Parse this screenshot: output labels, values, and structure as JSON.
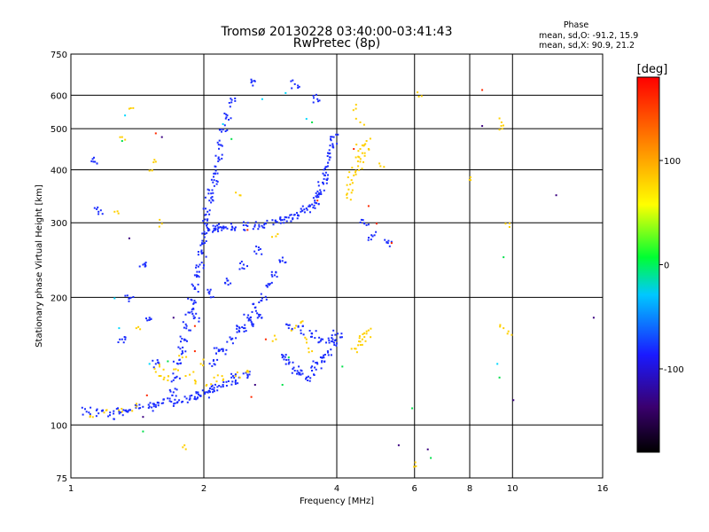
{
  "chart_data": {
    "type": "scatter",
    "title": "Tromsø 20130228 03:40:00-03:41:43",
    "subtitle": "RwPretec (8p)",
    "xlabel": "Frequency [MHz]",
    "ylabel": "Stationary phase Virtual Height [km]",
    "x_scale": "log",
    "y_scale": "log",
    "xlim": [
      1,
      16
    ],
    "ylim": [
      75,
      750
    ],
    "x_ticks": [
      1,
      2,
      4,
      6,
      8,
      10,
      16
    ],
    "x_tick_labels": [
      "1",
      "2",
      "4",
      "6",
      "8",
      "10",
      "16"
    ],
    "y_ticks": [
      75,
      100,
      200,
      300,
      400,
      500,
      600,
      750
    ],
    "y_tick_labels": [
      "75",
      "100",
      "200",
      "300",
      "400",
      "500",
      "600",
      "750"
    ],
    "grid": true,
    "phase_stats": {
      "heading": "Phase",
      "line_o": "mean, sd,O:  -91.2, 15.9",
      "line_x": "mean, sd,X:  90.9, 21.2"
    },
    "colorbar": {
      "label": "[deg]",
      "range": [
        -180,
        180
      ],
      "ticks": [
        100,
        0,
        -100
      ],
      "tick_labels": [
        "100",
        "0",
        "-100"
      ],
      "colors": [
        "#000000",
        "#3a006e",
        "#1a1aff",
        "#00c8ff",
        "#00ff32",
        "#ffff00",
        "#ff9600",
        "#ff0000"
      ]
    },
    "series": [
      {
        "mode": "O",
        "phase_mean": -91.2,
        "color": "#1a2cff",
        "points": [
          [
            1.08,
            108
          ],
          [
            1.15,
            107
          ],
          [
            1.22,
            106
          ],
          [
            1.28,
            108
          ],
          [
            1.35,
            109
          ],
          [
            1.42,
            110
          ],
          [
            1.5,
            111
          ],
          [
            1.55,
            112
          ],
          [
            1.6,
            113
          ],
          [
            1.68,
            114
          ],
          [
            1.75,
            115
          ],
          [
            1.82,
            116
          ],
          [
            1.9,
            117
          ],
          [
            1.95,
            118
          ],
          [
            2.0,
            119
          ],
          [
            2.05,
            121
          ],
          [
            2.1,
            123
          ],
          [
            2.2,
            125
          ],
          [
            2.35,
            128
          ],
          [
            2.5,
            132
          ],
          [
            1.7,
            120
          ],
          [
            1.72,
            130
          ],
          [
            1.74,
            140
          ],
          [
            1.78,
            150
          ],
          [
            1.8,
            160
          ],
          [
            1.82,
            172
          ],
          [
            1.85,
            185
          ],
          [
            1.87,
            198
          ],
          [
            1.9,
            212
          ],
          [
            1.93,
            226
          ],
          [
            1.95,
            240
          ],
          [
            1.97,
            255
          ],
          [
            2.0,
            270
          ],
          [
            2.02,
            285
          ],
          [
            2.05,
            290
          ],
          [
            2.1,
            292
          ],
          [
            2.15,
            293
          ],
          [
            2.25,
            292
          ],
          [
            2.35,
            294
          ],
          [
            2.5,
            296
          ],
          [
            2.6,
            298
          ],
          [
            2.75,
            300
          ],
          [
            2.9,
            303
          ],
          [
            3.0,
            306
          ],
          [
            3.1,
            310
          ],
          [
            3.2,
            315
          ],
          [
            3.3,
            320
          ],
          [
            3.4,
            326
          ],
          [
            3.5,
            333
          ],
          [
            3.55,
            340
          ],
          [
            3.6,
            350
          ],
          [
            3.65,
            360
          ],
          [
            3.7,
            375
          ],
          [
            3.75,
            390
          ],
          [
            3.8,
            410
          ],
          [
            3.85,
            430
          ],
          [
            3.9,
            455
          ],
          [
            3.92,
            480
          ],
          [
            2.0,
            300
          ],
          [
            2.03,
            320
          ],
          [
            2.05,
            340
          ],
          [
            2.08,
            360
          ],
          [
            2.1,
            380
          ],
          [
            2.12,
            400
          ],
          [
            2.15,
            430
          ],
          [
            2.17,
            460
          ],
          [
            2.2,
            500
          ],
          [
            2.25,
            540
          ],
          [
            2.3,
            580
          ],
          [
            2.1,
            140
          ],
          [
            2.2,
            150
          ],
          [
            2.3,
            160
          ],
          [
            2.4,
            170
          ],
          [
            2.5,
            180
          ],
          [
            2.6,
            190
          ],
          [
            2.7,
            200
          ],
          [
            2.8,
            215
          ],
          [
            2.9,
            230
          ],
          [
            3.0,
            245
          ],
          [
            3.0,
            145
          ],
          [
            3.1,
            140
          ],
          [
            3.2,
            135
          ],
          [
            3.3,
            132
          ],
          [
            3.4,
            130
          ],
          [
            3.5,
            135
          ],
          [
            3.6,
            140
          ],
          [
            3.7,
            145
          ],
          [
            3.8,
            150
          ],
          [
            3.9,
            160
          ],
          [
            4.0,
            165
          ],
          [
            3.1,
            170
          ],
          [
            3.3,
            168
          ],
          [
            3.5,
            165
          ],
          [
            3.7,
            160
          ],
          [
            3.9,
            158
          ],
          [
            2.45,
            170
          ],
          [
            2.55,
            176
          ],
          [
            2.65,
            183
          ],
          [
            1.3,
            160
          ],
          [
            1.9,
            180
          ],
          [
            2.05,
            205
          ],
          [
            2.25,
            220
          ],
          [
            2.45,
            240
          ],
          [
            2.65,
            260
          ],
          [
            1.15,
            320
          ],
          [
            1.12,
            420
          ],
          [
            1.35,
            200
          ],
          [
            1.45,
            240
          ],
          [
            2.6,
            650
          ],
          [
            3.2,
            640
          ],
          [
            3.6,
            590
          ],
          [
            4.6,
            300
          ],
          [
            4.8,
            280
          ],
          [
            5.2,
            270
          ],
          [
            1.5,
            180
          ],
          [
            1.55,
            140
          ],
          [
            2.15,
            150
          ],
          [
            2.3,
            130
          ]
        ]
      },
      {
        "mode": "X",
        "phase_mean": 90.9,
        "color": "#ffd000",
        "points": [
          [
            1.55,
            134
          ],
          [
            1.58,
            138
          ],
          [
            1.62,
            130
          ],
          [
            1.65,
            128
          ],
          [
            1.72,
            136
          ],
          [
            1.78,
            145
          ],
          [
            1.85,
            132
          ],
          [
            1.9,
            128
          ],
          [
            1.96,
            140
          ],
          [
            2.02,
            125
          ],
          [
            2.1,
            130
          ],
          [
            2.2,
            128
          ],
          [
            2.35,
            131
          ],
          [
            2.5,
            135
          ],
          [
            1.3,
            108
          ],
          [
            1.4,
            111
          ],
          [
            1.1,
            105
          ],
          [
            1.2,
            109
          ],
          [
            4.2,
            370
          ],
          [
            4.3,
            380
          ],
          [
            4.35,
            390
          ],
          [
            4.4,
            400
          ],
          [
            4.45,
            410
          ],
          [
            4.5,
            420
          ],
          [
            4.55,
            440
          ],
          [
            4.6,
            460
          ],
          [
            4.65,
            470
          ],
          [
            4.4,
            430
          ],
          [
            4.5,
            450
          ],
          [
            4.7,
            450
          ],
          [
            4.3,
            355
          ],
          [
            4.2,
            345
          ],
          [
            4.45,
            155
          ],
          [
            4.5,
            158
          ],
          [
            4.55,
            160
          ],
          [
            4.6,
            162
          ],
          [
            4.65,
            165
          ],
          [
            4.7,
            168
          ],
          [
            4.4,
            152
          ],
          [
            3.2,
            170
          ],
          [
            3.3,
            175
          ],
          [
            3.4,
            160
          ],
          [
            3.5,
            150
          ],
          [
            2.9,
            160
          ],
          [
            1.35,
            560
          ],
          [
            1.3,
            480
          ],
          [
            1.5,
            400
          ],
          [
            1.55,
            420
          ],
          [
            1.4,
            170
          ],
          [
            9.4,
            520
          ],
          [
            9.3,
            500
          ],
          [
            9.6,
            300
          ],
          [
            9.5,
            170
          ],
          [
            9.7,
            165
          ],
          [
            6.2,
            600
          ],
          [
            1.8,
            90
          ],
          [
            6.0,
            82
          ],
          [
            4.5,
            520
          ],
          [
            4.4,
            560
          ],
          [
            1.6,
            300
          ],
          [
            2.4,
            350
          ],
          [
            2.9,
            280
          ],
          [
            1.25,
            320
          ],
          [
            5.0,
            410
          ],
          [
            8.0,
            380
          ]
        ]
      },
      {
        "mode": "other",
        "color": "#ff2a00",
        "points": [
          [
            2.55,
            117
          ],
          [
            1.9,
            172
          ],
          [
            4.9,
            300
          ],
          [
            4.7,
            330
          ],
          [
            1.9,
            150
          ],
          [
            1.55,
            490
          ],
          [
            2.75,
            160
          ],
          [
            5.3,
            270
          ],
          [
            2.5,
            290
          ],
          [
            3.6,
            340
          ],
          [
            8.5,
            620
          ],
          [
            4.35,
            450
          ],
          [
            1.48,
            118
          ]
        ]
      },
      {
        "mode": "other",
        "color": "#00e04a",
        "points": [
          [
            1.3,
            470
          ],
          [
            1.65,
            142
          ],
          [
            2.3,
            475
          ],
          [
            3.5,
            520
          ],
          [
            9.5,
            250
          ],
          [
            9.3,
            130
          ],
          [
            1.45,
            97
          ],
          [
            5.9,
            110
          ],
          [
            3.0,
            125
          ],
          [
            4.1,
            138
          ],
          [
            3.1,
            145
          ],
          [
            6.5,
            84
          ]
        ]
      },
      {
        "mode": "other",
        "color": "#00d8ff",
        "points": [
          [
            1.32,
            540
          ],
          [
            1.25,
            200
          ],
          [
            2.7,
            590
          ],
          [
            1.5,
            140
          ],
          [
            3.4,
            530
          ],
          [
            2.2,
            515
          ],
          [
            3.05,
            610
          ],
          [
            9.2,
            140
          ],
          [
            1.28,
            170
          ]
        ]
      },
      {
        "mode": "other",
        "color": "#3a0080",
        "points": [
          [
            1.6,
            480
          ],
          [
            1.7,
            180
          ],
          [
            5.5,
            90
          ],
          [
            6.4,
            88
          ],
          [
            8.5,
            510
          ],
          [
            10.0,
            115
          ],
          [
            12.5,
            350
          ],
          [
            15.2,
            180
          ],
          [
            1.35,
            277
          ],
          [
            2.6,
            125
          ],
          [
            1.45,
            105
          ]
        ]
      }
    ]
  }
}
